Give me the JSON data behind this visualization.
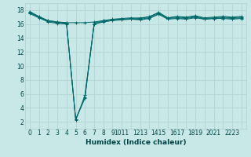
{
  "title": "",
  "xlabel": "Humidex (Indice chaleur)",
  "ylabel": "",
  "bg_color": "#c8e8e8",
  "grid_color": "#b8d8d8",
  "line_color": "#006868",
  "xlim": [
    -0.5,
    23.5
  ],
  "ylim": [
    1,
    19
  ],
  "xtick_values": [
    0,
    1,
    2,
    3,
    4,
    5,
    6,
    7,
    8,
    9,
    10,
    11,
    12,
    13,
    14,
    15,
    16,
    17,
    18,
    19,
    20,
    21,
    22,
    23
  ],
  "xtick_labels": [
    "0",
    "1",
    "2",
    "3",
    "4",
    "5",
    "6",
    "7",
    "8",
    "9",
    "1011",
    "",
    "1213",
    "",
    "1415",
    "",
    "1617",
    "",
    "1819",
    "",
    "2021",
    "",
    "2223",
    ""
  ],
  "ytick_values": [
    2,
    4,
    6,
    8,
    10,
    12,
    14,
    16,
    18
  ],
  "ytick_labels": [
    "2",
    "4",
    "6",
    "8",
    "10",
    "12",
    "14",
    "16",
    "18"
  ],
  "series": [
    [
      17.8,
      17.1,
      16.5,
      16.3,
      16.2,
      16.2,
      16.2,
      16.3,
      16.5,
      16.6,
      16.7,
      16.8,
      16.9,
      17.0,
      17.7,
      16.9,
      17.1,
      17.0,
      17.2,
      16.9,
      17.0,
      17.1,
      17.0,
      17.1
    ],
    [
      17.7,
      17.0,
      16.5,
      16.3,
      16.2,
      2.2,
      5.8,
      16.1,
      16.5,
      16.7,
      16.8,
      16.9,
      16.8,
      17.1,
      17.6,
      16.9,
      17.0,
      16.9,
      17.1,
      16.8,
      16.9,
      17.0,
      16.9,
      17.0
    ],
    [
      17.6,
      17.0,
      16.4,
      16.2,
      16.1,
      2.4,
      5.5,
      16.0,
      16.4,
      16.6,
      16.7,
      16.7,
      16.7,
      16.9,
      17.5,
      16.8,
      16.9,
      16.8,
      17.0,
      16.7,
      16.8,
      16.9,
      16.8,
      16.9
    ],
    [
      17.5,
      16.9,
      16.3,
      16.1,
      16.0,
      2.3,
      5.4,
      16.0,
      16.3,
      16.5,
      16.6,
      16.7,
      16.6,
      16.8,
      17.4,
      16.7,
      16.8,
      16.7,
      16.9,
      16.7,
      16.8,
      16.8,
      16.7,
      16.8
    ]
  ],
  "marker": "+",
  "markersize": 3,
  "linewidth": 0.7,
  "tick_fontsize": 5.5,
  "xlabel_fontsize": 6.5
}
